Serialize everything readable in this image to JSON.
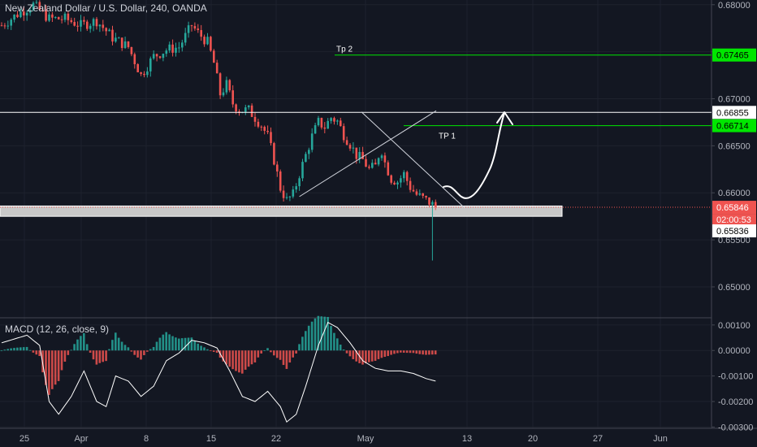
{
  "chart_data": {
    "type": "candlestick",
    "title": "New Zealand Dollar / U.S. Dollar, 240, OANDA",
    "price_axis": {
      "ylim": [
        0.6468,
        0.6805
      ],
      "ticks": [
        "0.68000",
        "0.67500",
        "0.67000",
        "0.66500",
        "0.66000",
        "0.65500",
        "0.65000"
      ],
      "tick_values": [
        0.68,
        0.675,
        0.67,
        0.665,
        0.66,
        0.655,
        0.65
      ]
    },
    "time_axis": {
      "labels": [
        "25",
        "Apr",
        "8",
        "15",
        "22",
        "May",
        "13",
        "20",
        "27",
        "Jun"
      ]
    },
    "price_path": [
      [
        0,
        0.6778
      ],
      [
        5,
        0.679
      ],
      [
        10,
        0.68
      ],
      [
        15,
        0.6785
      ],
      [
        20,
        0.6785
      ],
      [
        25,
        0.6778
      ],
      [
        30,
        0.6783
      ],
      [
        35,
        0.6765
      ],
      [
        40,
        0.6755
      ],
      [
        44,
        0.6725
      ],
      [
        48,
        0.6745
      ],
      [
        52,
        0.6752
      ],
      [
        56,
        0.6755
      ],
      [
        60,
        0.6778
      ],
      [
        62,
        0.677
      ],
      [
        65,
        0.676
      ],
      [
        67,
        0.6738
      ],
      [
        69,
        0.6705
      ],
      [
        71,
        0.6715
      ],
      [
        73,
        0.6695
      ],
      [
        75,
        0.6688
      ],
      [
        78,
        0.6688
      ],
      [
        80,
        0.668
      ],
      [
        82,
        0.6672
      ],
      [
        84,
        0.666
      ],
      [
        86,
        0.6635
      ],
      [
        88,
        0.6605
      ],
      [
        90,
        0.6592
      ],
      [
        92,
        0.6598
      ],
      [
        94,
        0.662
      ],
      [
        96,
        0.664
      ],
      [
        98,
        0.666
      ],
      [
        100,
        0.6675
      ],
      [
        102,
        0.667
      ],
      [
        104,
        0.668
      ],
      [
        106,
        0.6676
      ],
      [
        108,
        0.6662
      ],
      [
        110,
        0.6652
      ],
      [
        112,
        0.664
      ],
      [
        114,
        0.6635
      ],
      [
        116,
        0.6625
      ],
      [
        118,
        0.6628
      ],
      [
        119,
        0.664
      ],
      [
        120,
        0.6645
      ],
      [
        121,
        0.6632
      ],
      [
        123,
        0.6615
      ],
      [
        125,
        0.6612
      ],
      [
        127,
        0.662
      ],
      [
        129,
        0.6606
      ],
      [
        131,
        0.6598
      ],
      [
        133,
        0.6594
      ],
      [
        135,
        0.659
      ],
      [
        137,
        0.6585
      ]
    ],
    "spike": {
      "low": 0.6528
    },
    "levels": [
      {
        "label": "Tp 2",
        "price": "0.67465",
        "value": 0.67465,
        "color": "#00e600"
      },
      {
        "label": "TP 1",
        "price": "0.66714",
        "value": 0.66714,
        "color": "#00e600"
      },
      {
        "label": "",
        "price": "0.66855",
        "value": 0.66855,
        "color": "#ffffff"
      }
    ],
    "last_price": {
      "price": "0.65846",
      "value": 0.65846,
      "countdown": "02:00:53",
      "color": "#ef5350"
    },
    "bid_price": {
      "price": "0.65836",
      "value": 0.65836
    },
    "support_zone": [
      0.6575,
      0.6586
    ],
    "macd": {
      "label": "MACD (12, 26, close, 9)",
      "ylim": [
        -0.00305,
        0.00125
      ],
      "ticks": [
        "0.00100",
        "0.00000",
        "-0.00100",
        "-0.00200",
        "-0.00300"
      ],
      "tick_values": [
        0.001,
        0.0,
        -0.001,
        -0.002,
        -0.003
      ],
      "hist_color_up": "#26a69a",
      "hist_color_down": "#ef5350"
    }
  }
}
